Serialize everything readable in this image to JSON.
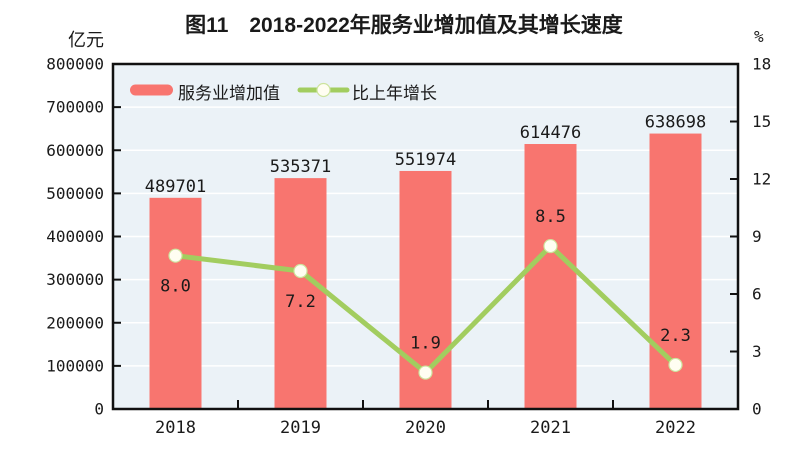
{
  "title": "图11　2018-2022年服务业增加值及其增长速度",
  "left_axis": {
    "unit": "亿元",
    "min": 0,
    "max": 800000,
    "step": 100000
  },
  "right_axis": {
    "unit": "%",
    "min": 0,
    "max": 18,
    "step": 3
  },
  "legend": {
    "items": [
      {
        "label": "服务业增加值",
        "marker": "bar-swatch"
      },
      {
        "label": "比上年增长",
        "marker": "line-marker"
      }
    ]
  },
  "colors": {
    "bar": "#F8756F",
    "line": "#A2CD5F",
    "marker_fill": "#FFFEF2",
    "marker_stroke": "#CDE49E",
    "plot_bg": "#EBF2F7",
    "grid": "#FFFFFF",
    "axis": "#111111",
    "text": "#1A1A1A"
  },
  "chart_data": {
    "type": "bar",
    "title": "图11　2018-2022年服务业增加值及其增长速度",
    "categories": [
      "2018",
      "2019",
      "2020",
      "2021",
      "2022"
    ],
    "series": [
      {
        "name": "服务业增加值",
        "type": "bar",
        "axis": "left",
        "values": [
          489701,
          535371,
          551974,
          614476,
          638698
        ],
        "labels": [
          "489701",
          "535371",
          "551974",
          "614476",
          "638698"
        ]
      },
      {
        "name": "比上年增长",
        "type": "line",
        "axis": "right",
        "values": [
          8.0,
          7.2,
          1.9,
          8.5,
          2.3
        ],
        "labels": [
          "8.0",
          "7.2",
          "1.9",
          "8.5",
          "2.3"
        ],
        "label_positions": [
          "below",
          "below",
          "above",
          "above",
          "above"
        ]
      }
    ],
    "xlabel": "",
    "ylabel_left": "亿元",
    "ylabel_right": "%",
    "left_ylim": [
      0,
      800000
    ],
    "right_ylim": [
      0,
      18
    ],
    "grid": true,
    "legend_position": "top-left-inside"
  }
}
